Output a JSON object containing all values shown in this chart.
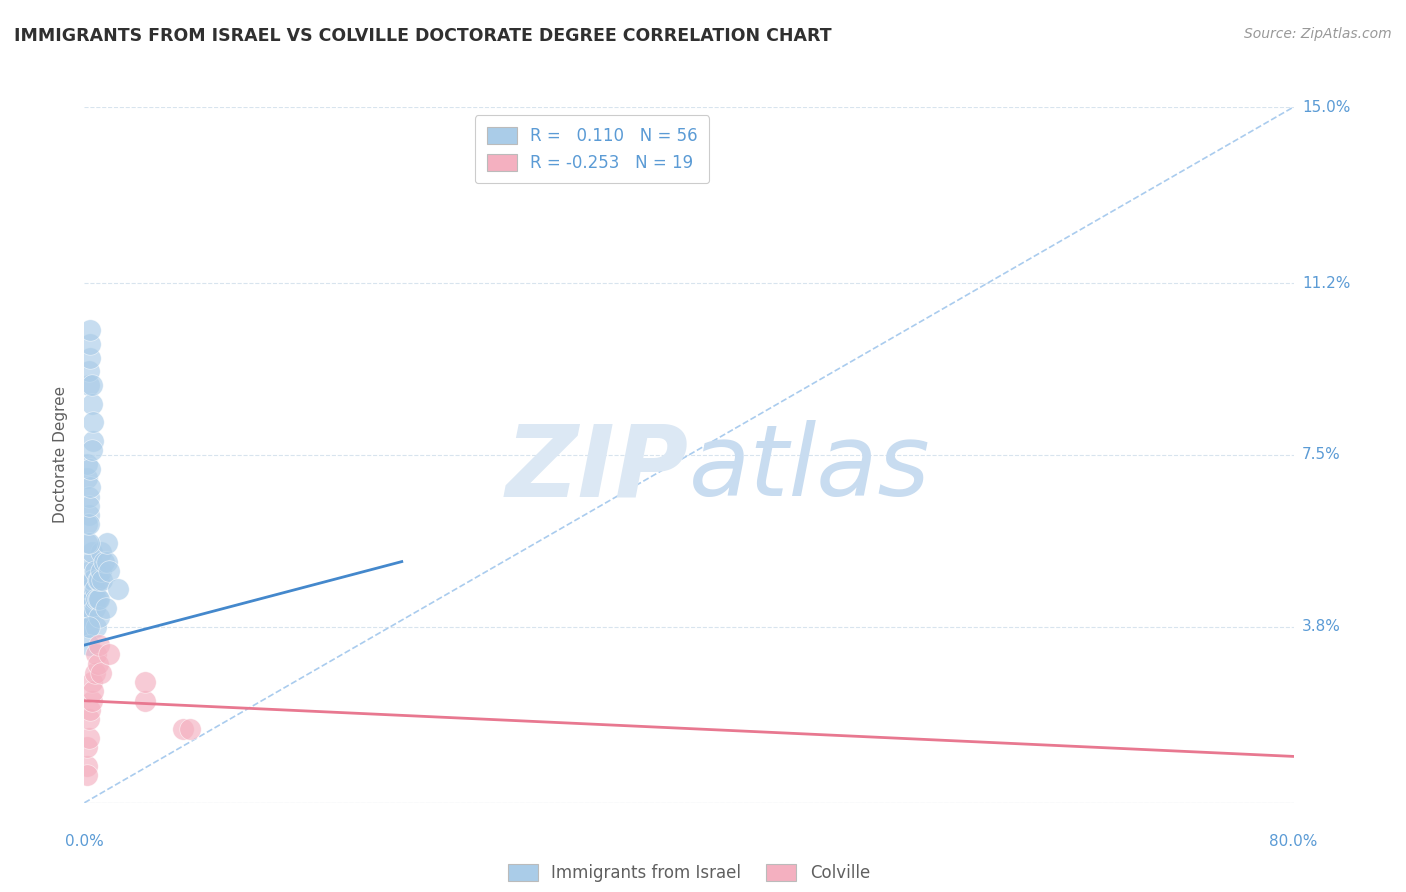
{
  "title": "IMMIGRANTS FROM ISRAEL VS COLVILLE DOCTORATE DEGREE CORRELATION CHART",
  "source": "Source: ZipAtlas.com",
  "ylabel": "Doctorate Degree",
  "xlim": [
    0.0,
    0.8
  ],
  "ylim": [
    0.0,
    0.15
  ],
  "ytick_vals": [
    0.0,
    0.038,
    0.075,
    0.112,
    0.15
  ],
  "ytick_labels": [
    "",
    "3.8%",
    "7.5%",
    "11.2%",
    "15.0%"
  ],
  "legend_labels": [
    "Immigrants from Israel",
    "Colville"
  ],
  "R_israel": 0.11,
  "N_israel": 56,
  "R_colville": -0.253,
  "N_colville": 19,
  "blue_scatter_color": "#AACCE8",
  "pink_scatter_color": "#F4B0C0",
  "blue_line_color": "#4488CC",
  "pink_line_color": "#E87890",
  "diag_line_color": "#AACCEE",
  "watermark_color": "#D8EAF8",
  "title_color": "#303030",
  "source_color": "#999999",
  "ylabel_color": "#606060",
  "tick_color": "#5B9BD5",
  "grid_color": "#D8E4EE",
  "legend_text_color": "#222222",
  "legend_R_color": "#5B9BD5",
  "blue_x": [
    0.002,
    0.002,
    0.003,
    0.003,
    0.003,
    0.003,
    0.004,
    0.004,
    0.004,
    0.005,
    0.005,
    0.005,
    0.006,
    0.006,
    0.007,
    0.007,
    0.007,
    0.008,
    0.008,
    0.009,
    0.009,
    0.01,
    0.01,
    0.01,
    0.011,
    0.011,
    0.012,
    0.013,
    0.014,
    0.015,
    0.015,
    0.016,
    0.003,
    0.003,
    0.004,
    0.004,
    0.004,
    0.005,
    0.005,
    0.006,
    0.006,
    0.002,
    0.002,
    0.003,
    0.003,
    0.002,
    0.002,
    0.003,
    0.003,
    0.003,
    0.004,
    0.004,
    0.005,
    0.022,
    0.003,
    0.003
  ],
  "blue_y": [
    0.038,
    0.042,
    0.046,
    0.04,
    0.044,
    0.038,
    0.05,
    0.046,
    0.042,
    0.052,
    0.048,
    0.054,
    0.044,
    0.048,
    0.042,
    0.046,
    0.05,
    0.038,
    0.044,
    0.044,
    0.048,
    0.04,
    0.044,
    0.048,
    0.05,
    0.054,
    0.048,
    0.052,
    0.042,
    0.052,
    0.056,
    0.05,
    0.09,
    0.093,
    0.096,
    0.099,
    0.102,
    0.086,
    0.09,
    0.078,
    0.082,
    0.07,
    0.073,
    0.062,
    0.066,
    0.056,
    0.06,
    0.056,
    0.06,
    0.064,
    0.068,
    0.072,
    0.076,
    0.046,
    0.034,
    0.038
  ],
  "pink_x": [
    0.002,
    0.002,
    0.003,
    0.003,
    0.004,
    0.005,
    0.005,
    0.006,
    0.007,
    0.008,
    0.009,
    0.01,
    0.011,
    0.016,
    0.04,
    0.04,
    0.065,
    0.07,
    0.002
  ],
  "pink_y": [
    0.008,
    0.012,
    0.014,
    0.018,
    0.02,
    0.022,
    0.026,
    0.024,
    0.028,
    0.032,
    0.03,
    0.034,
    0.028,
    0.032,
    0.022,
    0.026,
    0.016,
    0.016,
    0.006
  ],
  "blue_trend_x": [
    0.0,
    0.21
  ],
  "blue_trend_y": [
    0.034,
    0.052
  ],
  "pink_trend_x": [
    0.0,
    0.8
  ],
  "pink_trend_y": [
    0.022,
    0.01
  ]
}
